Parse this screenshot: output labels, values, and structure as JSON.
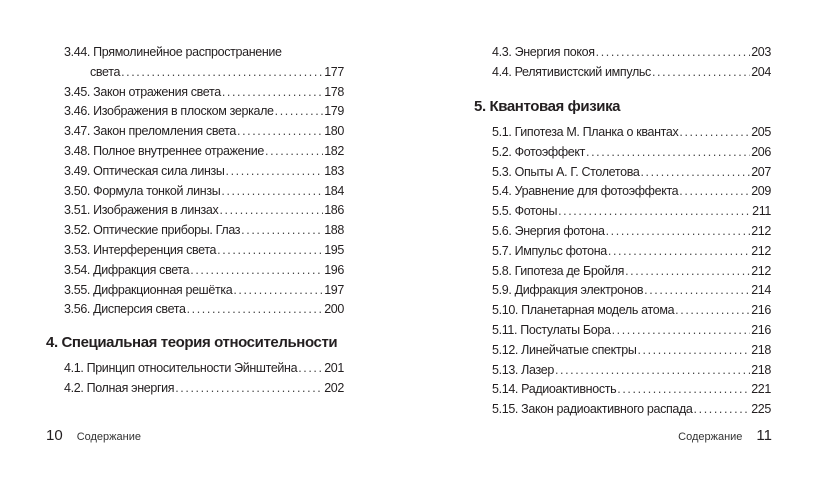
{
  "left_page": {
    "entries_top": [
      {
        "label": "3.44. Прямолинейное распространение",
        "page": ""
      },
      {
        "label": "света",
        "page": "177",
        "continuation": true
      },
      {
        "label": "3.45. Закон отражения света",
        "page": "178"
      },
      {
        "label": "3.46. Изображения в плоском зеркале",
        "page": "179"
      },
      {
        "label": "3.47. Закон преломления света",
        "page": "180"
      },
      {
        "label": "3.48. Полное внутреннее отражение",
        "page": "182"
      },
      {
        "label": "3.49. Оптическая сила линзы",
        "page": "183"
      },
      {
        "label": "3.50. Формула тонкой линзы",
        "page": "184"
      },
      {
        "label": "3.51. Изображения в линзах",
        "page": "186"
      },
      {
        "label": "3.52. Оптические приборы. Глаз",
        "page": "188"
      },
      {
        "label": "3.53. Интерференция света",
        "page": "195"
      },
      {
        "label": "3.54. Дифракция света",
        "page": "196"
      },
      {
        "label": "3.55. Дифракционная решётка",
        "page": "197"
      },
      {
        "label": "3.56. Дисперсия света",
        "page": "200"
      }
    ],
    "chapter_heading": "4. Специальная теория относительности",
    "entries_bottom": [
      {
        "label": "4.1. Принцип относительности Эйнштейна",
        "page": "201"
      },
      {
        "label": "4.2. Полная энергия",
        "page": "202"
      }
    ],
    "page_number": "10",
    "running_title": "Содержание"
  },
  "right_page": {
    "entries_top": [
      {
        "label": "4.3. Энергия покоя",
        "page": "203"
      },
      {
        "label": "4.4. Релятивистский импульс",
        "page": "204"
      }
    ],
    "chapter_heading": "5. Квантовая физика",
    "entries_bottom": [
      {
        "label": "5.1. Гипотеза М. Планка о квантах",
        "page": "205"
      },
      {
        "label": "5.2. Фотоэффект",
        "page": "206"
      },
      {
        "label": "5.3. Опыты А. Г. Столетова",
        "page": "207"
      },
      {
        "label": "5.4. Уравнение для фотоэффекта",
        "page": "209"
      },
      {
        "label": "5.5. Фотоны",
        "page": "211"
      },
      {
        "label": "5.6. Энергия фотона",
        "page": "212"
      },
      {
        "label": "5.7. Импульс фотона",
        "page": "212"
      },
      {
        "label": "5.8. Гипотеза де Бройля",
        "page": "212"
      },
      {
        "label": "5.9. Дифракция электронов",
        "page": "214"
      },
      {
        "label": "5.10. Планетарная модель атома",
        "page": "216"
      },
      {
        "label": "5.11. Постулаты Бора",
        "page": "216"
      },
      {
        "label": "5.12. Линейчатые спектры",
        "page": "218"
      },
      {
        "label": "5.13. Лазер",
        "page": "218"
      },
      {
        "label": "5.14. Радиоактивность",
        "page": "221"
      },
      {
        "label": "5.15. Закон радиоактивного распада",
        "page": "225"
      }
    ],
    "page_number": "11",
    "running_title": "Содержание"
  }
}
